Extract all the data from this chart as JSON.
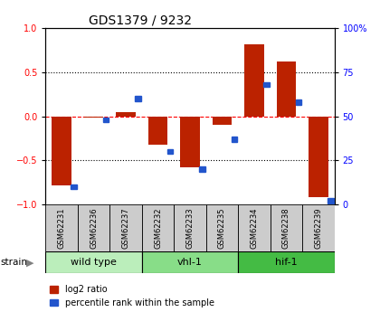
{
  "title": "GDS1379 / 9232",
  "samples": [
    "GSM62231",
    "GSM62236",
    "GSM62237",
    "GSM62232",
    "GSM62233",
    "GSM62235",
    "GSM62234",
    "GSM62238",
    "GSM62239"
  ],
  "log2_ratio": [
    -0.78,
    -0.02,
    0.05,
    -0.32,
    -0.58,
    -0.1,
    0.82,
    0.62,
    -0.92
  ],
  "percentile_rank": [
    10,
    48,
    60,
    30,
    20,
    37,
    68,
    58,
    2
  ],
  "groups": [
    {
      "label": "wild type",
      "start": 0,
      "end": 3,
      "color": "#bbeebb"
    },
    {
      "label": "vhl-1",
      "start": 3,
      "end": 6,
      "color": "#88dd88"
    },
    {
      "label": "hif-1",
      "start": 6,
      "end": 9,
      "color": "#44bb44"
    }
  ],
  "ylim_left": [
    -1.0,
    1.0
  ],
  "ylim_right": [
    0,
    100
  ],
  "yticks_left": [
    -1.0,
    -0.5,
    0.0,
    0.5,
    1.0
  ],
  "yticks_right": [
    0,
    25,
    50,
    75,
    100
  ],
  "bar_width": 0.6,
  "red_color": "#bb2200",
  "blue_color": "#2255cc",
  "legend_entries": [
    "log2 ratio",
    "percentile rank within the sample"
  ],
  "sample_box_color": "#cccccc",
  "strain_arrow": "▶"
}
